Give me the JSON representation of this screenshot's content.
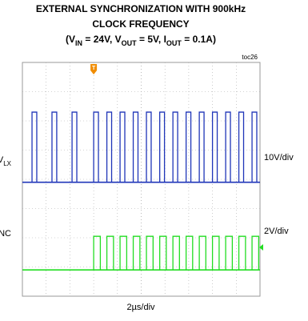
{
  "chart_data": {
    "type": "scope",
    "title": "EXTERNAL SYNCHRONIZATION WITH 900kHz",
    "title_line2": "CLOCK FREQUENCY",
    "subtitle_parts": [
      {
        "text": "(V"
      },
      {
        "text": "IN",
        "sub": true
      },
      {
        "text": " = 24V, V"
      },
      {
        "text": "OUT",
        "sub": true
      },
      {
        "text": " = 5V, I"
      },
      {
        "text": "OUT",
        "sub": true
      },
      {
        "text": " = 0.1A)"
      }
    ],
    "tag": "toc26",
    "x_label": "2µs/div",
    "xlim": [
      -6,
      14
    ],
    "trigger_time": 0,
    "trigger_label": "T",
    "series": [
      {
        "name": "V",
        "name_sub": "LX",
        "scale": "10V/div",
        "color": "#1f35b8",
        "ylim": [
          -39,
          41
        ],
        "low": 0,
        "high": 24,
        "pulses": [
          [
            -5.19,
            -4.79
          ],
          [
            -3.51,
            -3.11
          ],
          [
            -1.82,
            -1.42
          ],
          [
            0,
            0.4
          ],
          [
            1.11,
            1.51
          ],
          [
            2.22,
            2.62
          ],
          [
            3.33,
            3.73
          ],
          [
            4.44,
            4.84
          ],
          [
            5.56,
            5.96
          ],
          [
            6.67,
            7.07
          ],
          [
            7.78,
            8.18
          ],
          [
            8.89,
            9.29
          ],
          [
            10,
            10.4
          ],
          [
            11.11,
            11.51
          ],
          [
            12.22,
            12.62
          ],
          [
            13.33,
            13.73
          ]
        ]
      },
      {
        "name": "SYNC",
        "scale": "2V/div",
        "color": "#22dd22",
        "ylim": [
          -1.8,
          14.2
        ],
        "low": 0,
        "high": 2.3,
        "pulses": [
          [
            0,
            0.56
          ],
          [
            1.11,
            1.67
          ],
          [
            2.22,
            2.78
          ],
          [
            3.33,
            3.89
          ],
          [
            4.44,
            5
          ],
          [
            5.56,
            6.11
          ],
          [
            6.67,
            7.22
          ],
          [
            7.78,
            8.33
          ],
          [
            8.89,
            9.44
          ],
          [
            10,
            10.56
          ],
          [
            11.11,
            11.67
          ],
          [
            12.22,
            12.78
          ],
          [
            13.33,
            13.89
          ]
        ]
      }
    ]
  }
}
